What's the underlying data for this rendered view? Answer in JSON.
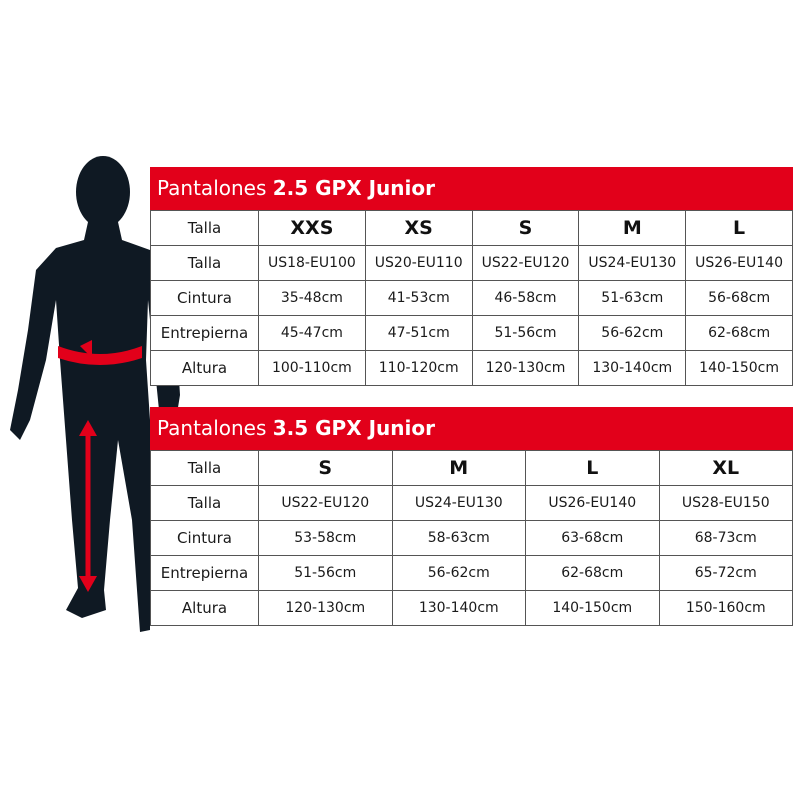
{
  "colors": {
    "accent": "#e2001a",
    "silhouette": "#0f1923"
  },
  "tables": [
    {
      "title_prefix": "Pantalones",
      "title_model": "2.5 GPX Junior",
      "rows": [
        {
          "label": "Talla",
          "values": [
            "XXS",
            "XS",
            "S",
            "M",
            "L"
          ]
        },
        {
          "label": "Talla",
          "values": [
            "US18-EU100",
            "US20-EU110",
            "US22-EU120",
            "US24-EU130",
            "US26-EU140"
          ]
        },
        {
          "label": "Cintura",
          "values": [
            "35-48cm",
            "41-53cm",
            "46-58cm",
            "51-63cm",
            "56-68cm"
          ]
        },
        {
          "label": "Entrepierna",
          "values": [
            "45-47cm",
            "47-51cm",
            "51-56cm",
            "56-62cm",
            "62-68cm"
          ]
        },
        {
          "label": "Altura",
          "values": [
            "100-110cm",
            "110-120cm",
            "120-130cm",
            "130-140cm",
            "140-150cm"
          ]
        }
      ]
    },
    {
      "title_prefix": "Pantalones",
      "title_model": "3.5 GPX Junior",
      "rows": [
        {
          "label": "Talla",
          "values": [
            "S",
            "M",
            "L",
            "XL"
          ]
        },
        {
          "label": "Talla",
          "values": [
            "US22-EU120",
            "US24-EU130",
            "US26-EU140",
            "US28-EU150"
          ]
        },
        {
          "label": "Cintura",
          "values": [
            "53-58cm",
            "58-63cm",
            "63-68cm",
            "68-73cm"
          ]
        },
        {
          "label": "Entrepierna",
          "values": [
            "51-56cm",
            "56-62cm",
            "62-68cm",
            "65-72cm"
          ]
        },
        {
          "label": "Altura",
          "values": [
            "120-130cm",
            "130-140cm",
            "140-150cm",
            "150-160cm"
          ]
        }
      ]
    }
  ]
}
